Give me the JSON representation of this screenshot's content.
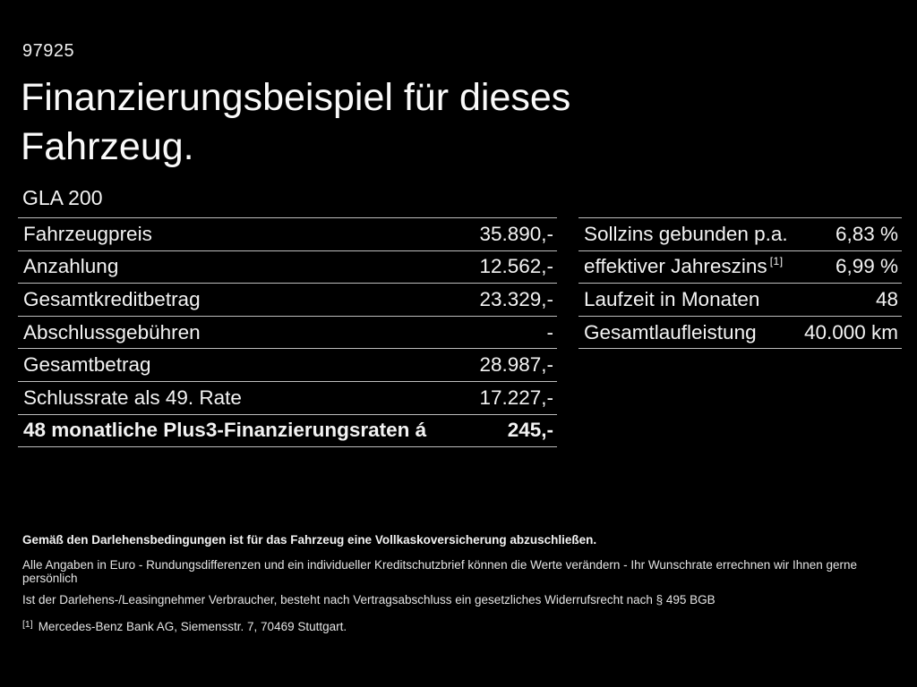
{
  "page": {
    "background_color": "#000000",
    "text_color": "#f3f3f3",
    "divider_color": "#bdbdbd"
  },
  "header": {
    "reference_number": "97925",
    "title_line1": "Finanzierungsbeispiel für dieses",
    "title_line2": "Fahrzeug.",
    "model": "GLA 200"
  },
  "financing_table": {
    "rows": [
      {
        "label": "Fahrzeugpreis",
        "value": "35.890,-"
      },
      {
        "label": "Anzahlung",
        "value": "12.562,-"
      },
      {
        "label": "Gesamtkreditbetrag",
        "value": "23.329,-"
      },
      {
        "label": "Abschlussgebühren",
        "value": "-"
      },
      {
        "label": "Gesamtbetrag",
        "value": "28.987,-"
      },
      {
        "label": "Schlussrate als 49. Rate",
        "value": "17.227,-"
      },
      {
        "label": "48 monatliche Plus3-Finanzierungsraten á",
        "value": "245,-"
      }
    ]
  },
  "conditions_table": {
    "rows": [
      {
        "label": "Sollzins gebunden p.a.",
        "value": "6,83 %"
      },
      {
        "label": "effektiver Jahreszins",
        "footnote_marker": "[1]",
        "value": "6,99 %"
      },
      {
        "label": "Laufzeit in Monaten",
        "value": "48"
      },
      {
        "label": "Gesamtlaufleistung",
        "value": "40.000 km"
      }
    ]
  },
  "footer": {
    "insurance_note": "Gemäß den Darlehensbedingungen ist für das Fahrzeug eine Vollkaskoversicherung abzuschließen.",
    "disclaimer_line1": "Alle Angaben in Euro - Rundungsdifferenzen und ein individueller Kreditschutzbrief können die Werte verändern - Ihr Wunschrate errechnen wir Ihnen gerne persönlich",
    "disclaimer_line2": "Ist der Darlehens-/Leasingnehmer Verbraucher, besteht nach Vertragsabschluss ein gesetzliches Widerrufsrecht nach § 495 BGB",
    "footnote_marker": "[1]",
    "footnote_text": "Mercedes-Benz Bank AG, Siemensstr. 7, 70469 Stuttgart."
  }
}
